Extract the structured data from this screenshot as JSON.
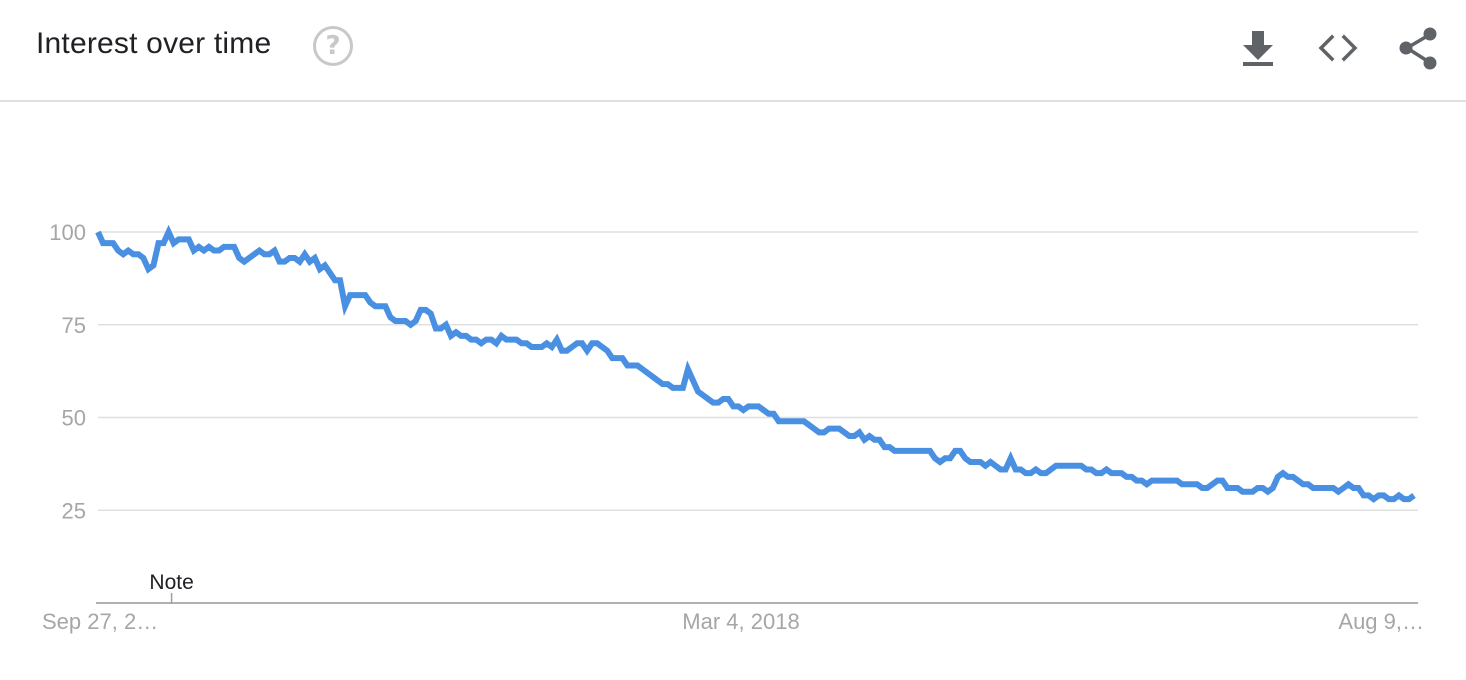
{
  "header": {
    "title": "Interest over time",
    "help_glyph": "?",
    "icons": {
      "download": "download-icon",
      "embed": "embed-code-icon",
      "share": "share-icon"
    }
  },
  "colors": {
    "series": "#4a90e2",
    "grid": "#e0e0e0",
    "axis": "#b0b0b0",
    "tick_text": "#a6a6a6"
  },
  "chart_data": {
    "type": "line",
    "title": "Interest over time",
    "xlabel": "",
    "ylabel": "",
    "ylim": [
      0,
      100
    ],
    "yticks": [
      25,
      50,
      75,
      100
    ],
    "ytick_labels": [
      "25",
      "50",
      "75",
      "100"
    ],
    "xtick_labels": [
      "Sep 27, 2…",
      "Mar 4, 2018",
      "Aug 9,…"
    ],
    "annotations": [
      {
        "label": "Note",
        "x_index": 14
      }
    ],
    "grid": true,
    "legend": "none",
    "series": [
      {
        "name": "Interest",
        "values": [
          100,
          97,
          97,
          97,
          95,
          94,
          95,
          94,
          94,
          93,
          90,
          91,
          97,
          97,
          100,
          97,
          98,
          98,
          98,
          95,
          96,
          95,
          96,
          95,
          95,
          96,
          96,
          96,
          93,
          92,
          93,
          94,
          95,
          94,
          94,
          95,
          92,
          92,
          93,
          93,
          92,
          94,
          92,
          93,
          90,
          91,
          89,
          87,
          87,
          80,
          83,
          83,
          83,
          83,
          81,
          80,
          80,
          80,
          77,
          76,
          76,
          76,
          75,
          76,
          79,
          79,
          78,
          74,
          74,
          75,
          72,
          73,
          72,
          72,
          71,
          71,
          70,
          71,
          71,
          70,
          72,
          71,
          71,
          71,
          70,
          70,
          69,
          69,
          69,
          70,
          69,
          71,
          68,
          68,
          69,
          70,
          70,
          68,
          70,
          70,
          69,
          68,
          66,
          66,
          66,
          64,
          64,
          64,
          63,
          62,
          61,
          60,
          59,
          59,
          58,
          58,
          58,
          63,
          60,
          57,
          56,
          55,
          54,
          54,
          55,
          55,
          53,
          53,
          52,
          53,
          53,
          53,
          52,
          51,
          51,
          49,
          49,
          49,
          49,
          49,
          49,
          48,
          47,
          46,
          46,
          47,
          47,
          47,
          46,
          45,
          45,
          46,
          44,
          45,
          44,
          44,
          42,
          42,
          41,
          41,
          41,
          41,
          41,
          41,
          41,
          41,
          39,
          38,
          39,
          39,
          41,
          41,
          39,
          38,
          38,
          38,
          37,
          38,
          37,
          36,
          36,
          39,
          36,
          36,
          35,
          35,
          36,
          35,
          35,
          36,
          37,
          37,
          37,
          37,
          37,
          37,
          36,
          36,
          35,
          35,
          36,
          35,
          35,
          35,
          34,
          34,
          33,
          33,
          32,
          33,
          33,
          33,
          33,
          33,
          33,
          32,
          32,
          32,
          32,
          31,
          31,
          32,
          33,
          33,
          31,
          31,
          31,
          30,
          30,
          30,
          31,
          31,
          30,
          31,
          34,
          35,
          34,
          34,
          33,
          32,
          32,
          31,
          31,
          31,
          31,
          31,
          30,
          31,
          32,
          31,
          31,
          29,
          29,
          28,
          29,
          29,
          28,
          28,
          29,
          28,
          28,
          29
        ]
      }
    ]
  }
}
